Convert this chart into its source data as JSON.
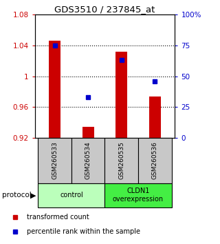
{
  "title": "GDS3510 / 237845_at",
  "samples": [
    "GSM260533",
    "GSM260534",
    "GSM260535",
    "GSM260536"
  ],
  "transformed_count": [
    1.046,
    0.934,
    1.032,
    0.974
  ],
  "percentile_rank": [
    75,
    33,
    63,
    46
  ],
  "ylim_left": [
    0.92,
    1.08
  ],
  "ylim_right": [
    0,
    100
  ],
  "yticks_left": [
    0.92,
    0.96,
    1.0,
    1.04,
    1.08
  ],
  "ytick_labels_left": [
    "0.92",
    "0.96",
    "1",
    "1.04",
    "1.08"
  ],
  "yticks_right": [
    0,
    25,
    50,
    75,
    100
  ],
  "ytick_labels_right": [
    "0",
    "25",
    "50",
    "75",
    "100%"
  ],
  "hlines": [
    1.04,
    1.0,
    0.96
  ],
  "bar_color": "#cc0000",
  "square_color": "#0000cc",
  "groups": [
    {
      "label": "control",
      "samples": [
        0,
        1
      ],
      "color": "#bbffbb"
    },
    {
      "label": "CLDN1\noverexpression",
      "samples": [
        2,
        3
      ],
      "color": "#44ee44"
    }
  ],
  "legend_bar_label": "transformed count",
  "legend_sq_label": "percentile rank within the sample",
  "protocol_label": "protocol",
  "tick_color_left": "#cc0000",
  "tick_color_right": "#0000cc"
}
